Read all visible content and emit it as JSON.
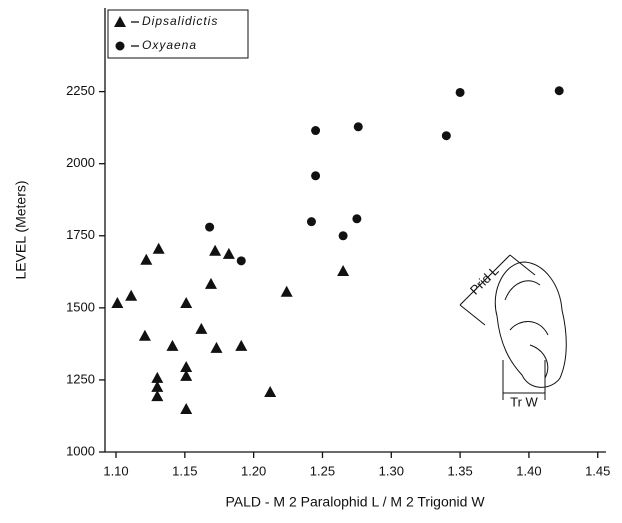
{
  "chart_data": {
    "type": "scatter",
    "xlabel": "PALD - M 2 Paralophid L / M 2 Trigonid W",
    "ylabel": "LEVEL (Meters)",
    "xlim": [
      1.092,
      1.456
    ],
    "ylim": [
      1000,
      2540
    ],
    "xticks": [
      {
        "value": 1.1,
        "label": "1.10"
      },
      1.15,
      {
        "value": 1.2,
        "label": "1.20"
      },
      1.25,
      {
        "value": 1.3,
        "label": "1.30"
      },
      1.35,
      {
        "value": 1.4,
        "label": "1.40"
      },
      1.45
    ],
    "yticks": [
      1000,
      1250,
      1500,
      1750,
      2000,
      2250
    ],
    "legend": "top-left",
    "series": [
      {
        "name": "Dipsalidictis",
        "color": "#111111",
        "marker": "triangle",
        "x": [
          1.101,
          1.111,
          1.122,
          1.131,
          1.121,
          1.141,
          1.13,
          1.13,
          1.13,
          1.151,
          1.151,
          1.151,
          1.151,
          1.162,
          1.169,
          1.172,
          1.182,
          1.173,
          1.191,
          1.212,
          1.224,
          1.265
        ],
        "values": [
          1517,
          1542,
          1667,
          1705,
          1403,
          1368,
          1257,
          1226,
          1194,
          1517,
          1295,
          1264,
          1149,
          1427,
          1583,
          1698,
          1687,
          1361,
          1368,
          1208,
          1556,
          1628
        ]
      },
      {
        "name": "Oxyaena",
        "color": "#111111",
        "marker": "circle",
        "x": [
          1.168,
          1.191,
          1.242,
          1.245,
          1.245,
          1.265,
          1.275,
          1.276,
          1.34,
          1.35,
          1.422
        ],
        "values": [
          1780,
          1663,
          1799,
          1958,
          2115,
          1750,
          1809,
          2128,
          2097,
          2247,
          2253
        ]
      }
    ],
    "annotations": [
      "Prid L",
      "Tr W"
    ]
  }
}
